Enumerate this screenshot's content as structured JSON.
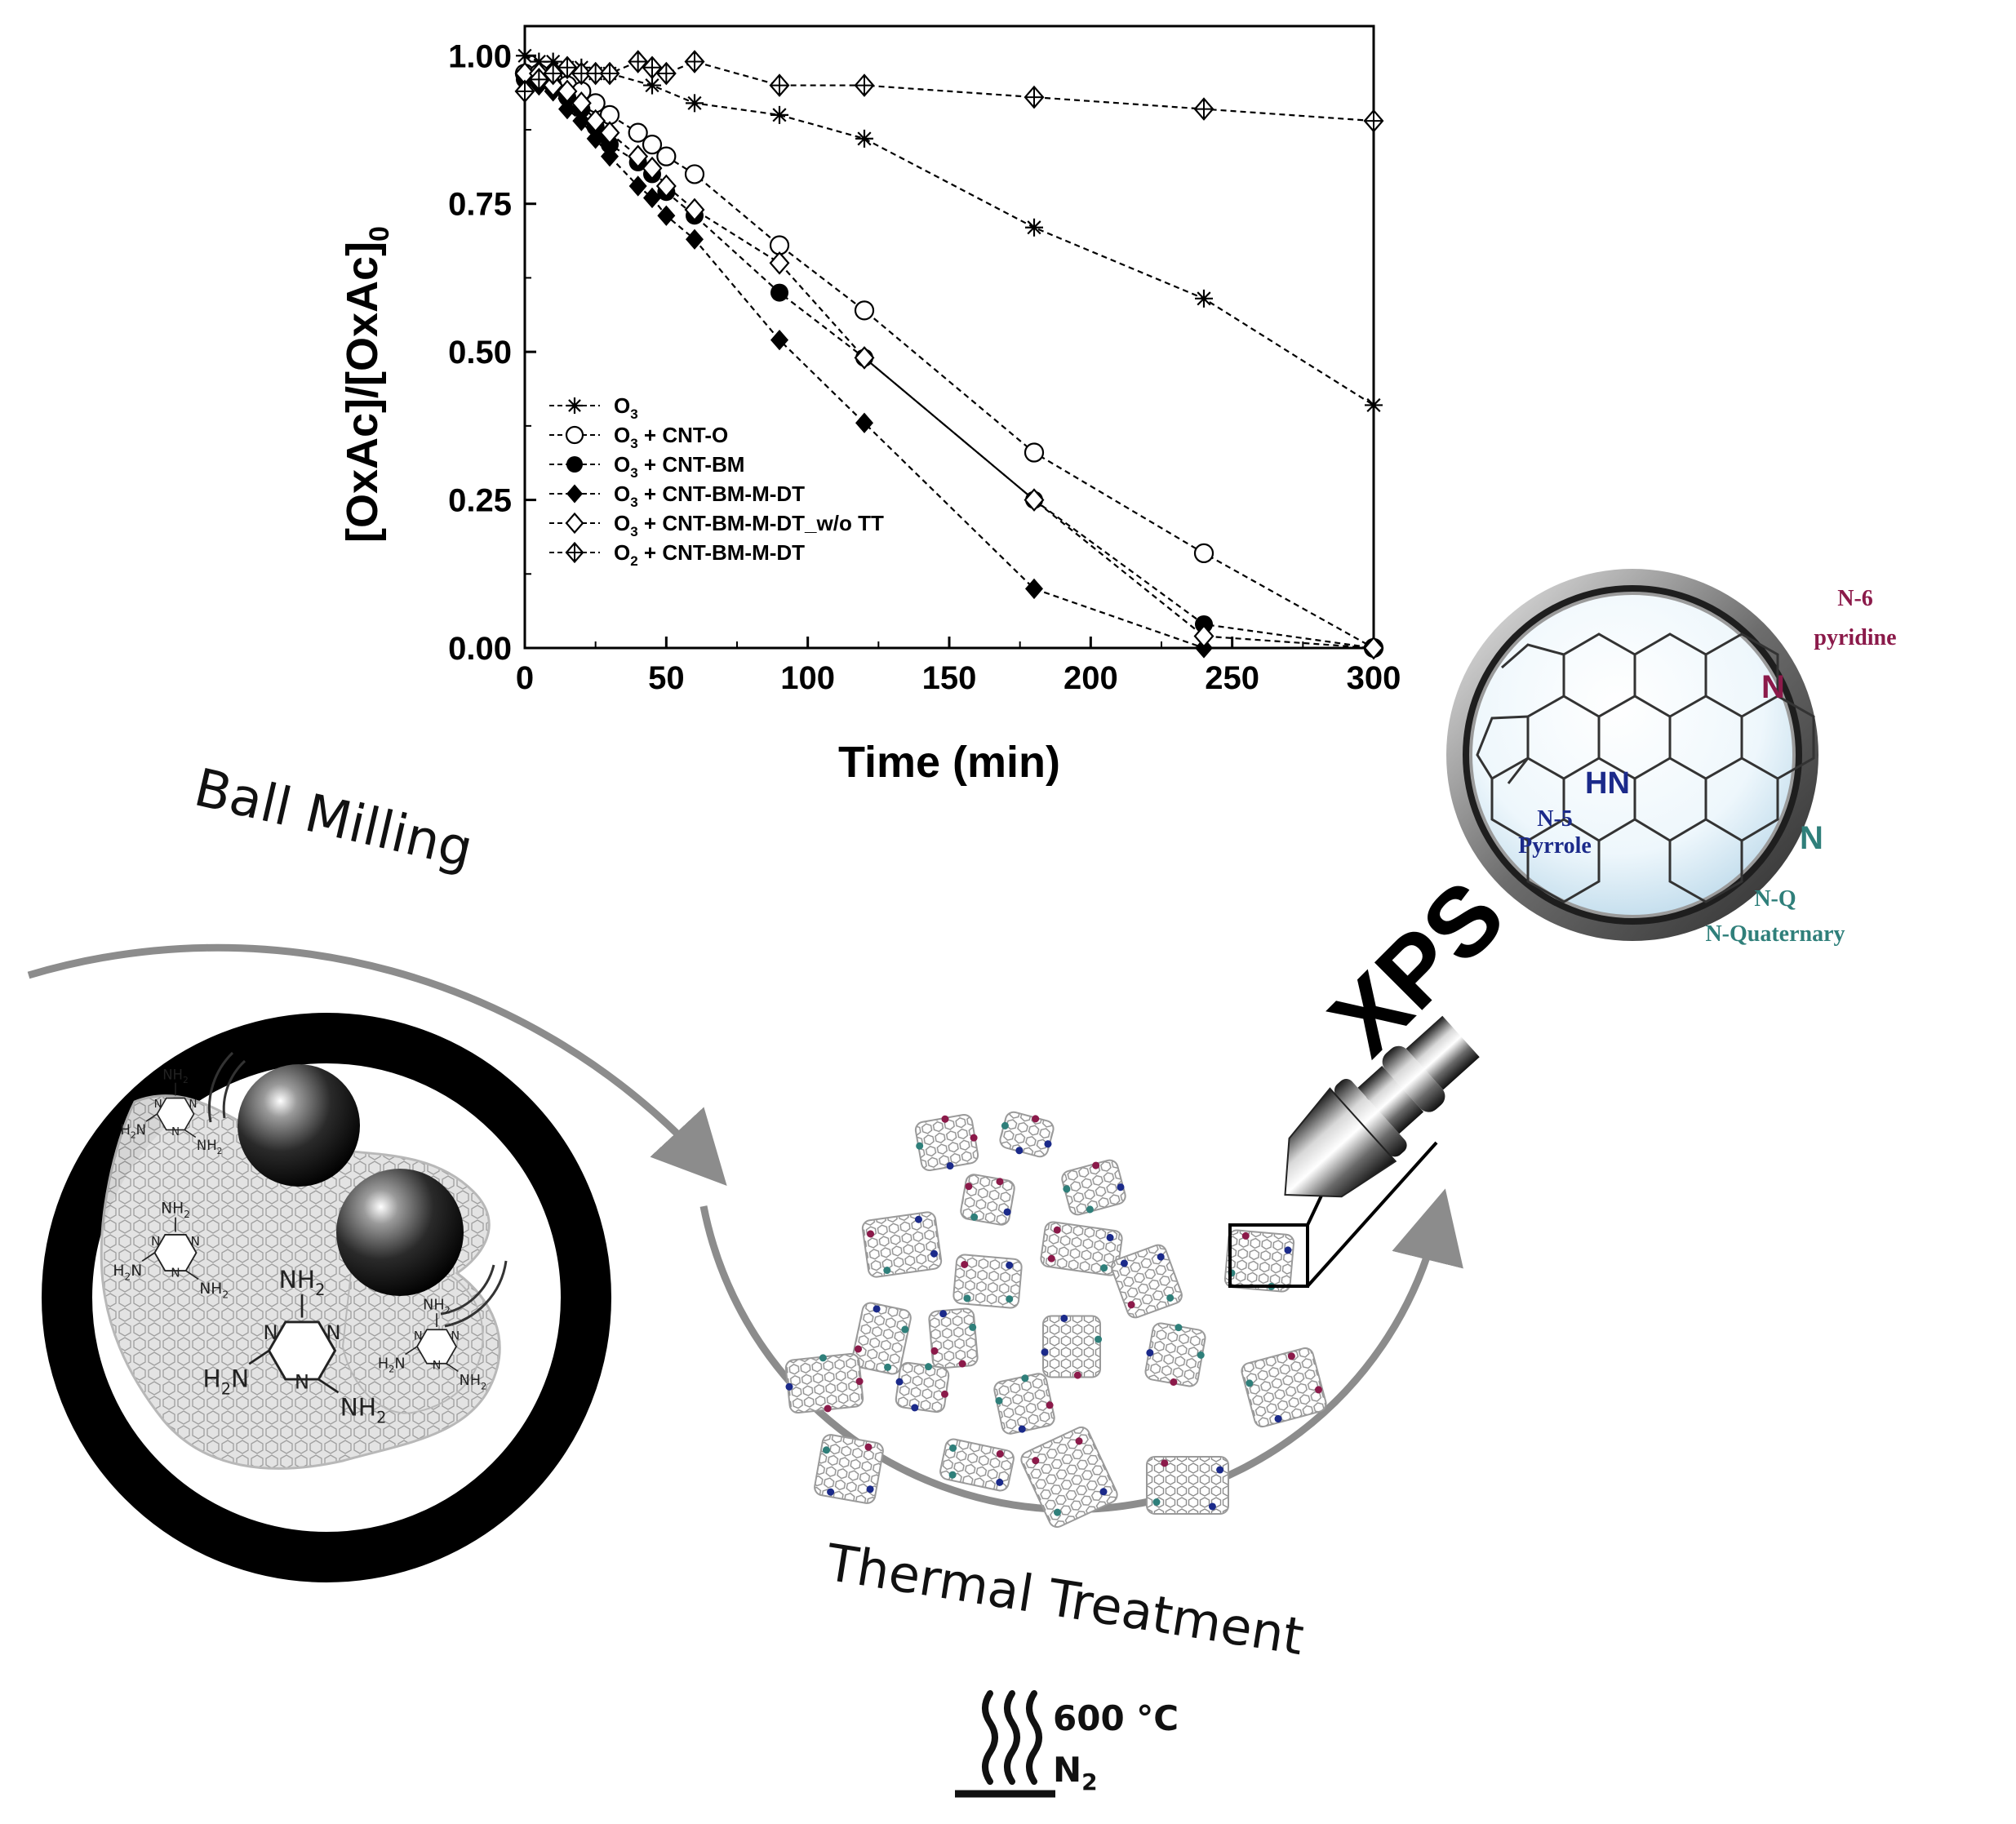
{
  "chart_data": {
    "type": "line",
    "xlabel": "Time (min)",
    "ylabel": "[OxAc]/[OxAc]",
    "ylabel_sub": "0",
    "xlim": [
      0,
      300
    ],
    "ylim": [
      0,
      1.05
    ],
    "x_ticks": [
      "0",
      "50",
      "100",
      "150",
      "200",
      "250",
      "300"
    ],
    "y_ticks": [
      "0.00",
      "0.25",
      "0.50",
      "0.75",
      "1.00"
    ],
    "legend_position": "lower-left",
    "series": [
      {
        "name": "O3",
        "label_parts": [
          "O",
          "3",
          ""
        ],
        "marker": "star",
        "x": [
          0,
          5,
          10,
          15,
          20,
          25,
          30,
          45,
          60,
          90,
          120,
          180,
          240,
          300
        ],
        "y": [
          1.0,
          0.99,
          0.99,
          0.98,
          0.98,
          0.97,
          0.97,
          0.95,
          0.92,
          0.9,
          0.86,
          0.71,
          0.59,
          0.41
        ]
      },
      {
        "name": "O3 + CNT-O",
        "label_parts": [
          "O",
          "3",
          " + CNT-O"
        ],
        "marker": "circle-open",
        "x": [
          0,
          5,
          10,
          15,
          20,
          25,
          30,
          40,
          45,
          50,
          60,
          90,
          120,
          180,
          240,
          300
        ],
        "y": [
          0.97,
          0.97,
          0.96,
          0.95,
          0.94,
          0.92,
          0.9,
          0.87,
          0.85,
          0.83,
          0.8,
          0.68,
          0.57,
          0.33,
          0.16,
          0.0
        ]
      },
      {
        "name": "O3 + CNT-BM",
        "label_parts": [
          "O",
          "3",
          " + CNT-BM"
        ],
        "marker": "circle-filled",
        "x": [
          0,
          5,
          10,
          15,
          20,
          25,
          30,
          40,
          45,
          50,
          60,
          90,
          120,
          180,
          240,
          300
        ],
        "y": [
          0.96,
          0.96,
          0.95,
          0.93,
          0.91,
          0.88,
          0.85,
          0.82,
          0.8,
          0.77,
          0.73,
          0.6,
          0.49,
          0.25,
          0.04,
          0.0
        ]
      },
      {
        "name": "O3 + CNT-BM-M-DT",
        "label_parts": [
          "O",
          "3",
          " + CNT-BM-M-DT"
        ],
        "marker": "diamond-filled",
        "x": [
          0,
          5,
          10,
          15,
          20,
          25,
          30,
          40,
          45,
          50,
          60,
          90,
          120,
          180,
          240,
          300
        ],
        "y": [
          0.96,
          0.95,
          0.94,
          0.91,
          0.89,
          0.86,
          0.83,
          0.78,
          0.76,
          0.73,
          0.69,
          0.52,
          0.38,
          0.1,
          0.0,
          0.0
        ]
      },
      {
        "name": "O3 + CNT-BM-M-DT_w/o TT",
        "label_parts": [
          "O",
          "3",
          " + CNT-BM-M-DT_w/o TT"
        ],
        "marker": "diamond-open",
        "x": [
          0,
          5,
          10,
          15,
          20,
          25,
          30,
          40,
          45,
          50,
          60,
          90,
          120,
          180,
          240,
          300
        ],
        "y": [
          0.97,
          0.97,
          0.95,
          0.94,
          0.92,
          0.89,
          0.87,
          0.83,
          0.81,
          0.78,
          0.74,
          0.65,
          0.49,
          0.25,
          0.02,
          0.0
        ]
      },
      {
        "name": "O2 + CNT-BM-M-DT",
        "label_parts": [
          "O",
          "2",
          " + CNT-BM-M-DT"
        ],
        "marker": "diamond-cross",
        "x": [
          0,
          5,
          10,
          15,
          20,
          25,
          30,
          40,
          45,
          50,
          60,
          90,
          120,
          180,
          240,
          300
        ],
        "y": [
          0.94,
          0.96,
          0.97,
          0.98,
          0.97,
          0.97,
          0.97,
          0.99,
          0.98,
          0.97,
          0.99,
          0.95,
          0.95,
          0.93,
          0.91,
          0.89
        ]
      }
    ]
  },
  "process": {
    "ball_milling": "Ball Milling",
    "thermal_treatment": "Thermal Treatment",
    "temperature": "600 °C",
    "atmosphere_main": "N",
    "atmosphere_sub": "2",
    "xps": "XPS"
  },
  "melamine_labels": {
    "nh2": "NH",
    "h2n": "H",
    "two": "2",
    "n": "N",
    "nh2_tail": "NH"
  },
  "nitrogen_species": {
    "n6_code": "N-6",
    "n6_name": "pyridine",
    "n5_code": "N-5",
    "n5_name": "Pyrrole",
    "nq_code": "N-Q",
    "nq_name": "N-Quaternary",
    "hn_label": "HN",
    "n_label": "N"
  },
  "colors": {
    "n6": "#8b1a4a",
    "n5": "#1b2a8a",
    "nq": "#2f7f7a",
    "arrow": "#8c8c8c"
  }
}
